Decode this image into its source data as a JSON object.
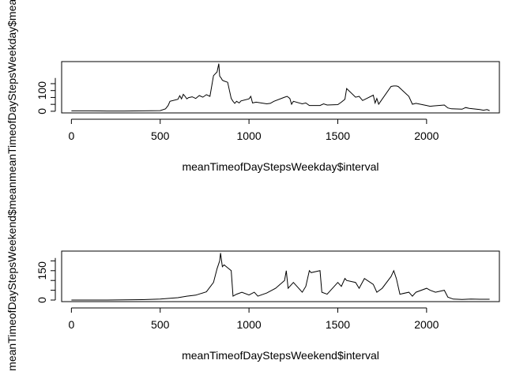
{
  "chart_data": [
    {
      "type": "line",
      "xlabel": "meanTimeofDayStepsWeekday$interval",
      "ylabel": "meanTimeofDayStepsWeekday$mean",
      "xticks": [
        0,
        500,
        1000,
        1500,
        2000
      ],
      "yticks": [
        0,
        100
      ],
      "xlim": [
        -55,
        2410
      ],
      "ylim": [
        -8,
        240
      ],
      "series": [
        {
          "x": [
            0,
            100,
            200,
            300,
            400,
            500,
            530,
            545,
            555,
            600,
            610,
            620,
            630,
            640,
            650,
            660,
            680,
            700,
            720,
            740,
            760,
            780,
            800,
            820,
            830,
            835,
            845,
            850,
            860,
            880,
            900,
            910,
            920,
            930,
            945,
            955,
            1000,
            1010,
            1020,
            1040,
            1100,
            1120,
            1140,
            1200,
            1215,
            1230,
            1240,
            1250,
            1300,
            1320,
            1340,
            1400,
            1420,
            1440,
            1500,
            1520,
            1540,
            1550,
            1600,
            1620,
            1640,
            1700,
            1710,
            1720,
            1730,
            1740,
            1800,
            1815,
            1830,
            1840,
            1900,
            1920,
            1940,
            2000,
            2020,
            2040,
            2100,
            2120,
            2140,
            2200,
            2220,
            2240,
            2300,
            2320,
            2340,
            2355
          ],
          "y": [
            2,
            2,
            1,
            1,
            2,
            3,
            12,
            28,
            48,
            58,
            75,
            60,
            82,
            72,
            60,
            66,
            70,
            62,
            76,
            68,
            80,
            72,
            172,
            190,
            230,
            170,
            158,
            150,
            146,
            140,
            62,
            48,
            38,
            48,
            40,
            50,
            60,
            72,
            40,
            44,
            36,
            38,
            48,
            68,
            72,
            62,
            34,
            48,
            36,
            40,
            28,
            28,
            36,
            30,
            32,
            44,
            58,
            110,
            68,
            72,
            52,
            78,
            40,
            62,
            34,
            46,
            120,
            122,
            122,
            120,
            72,
            34,
            38,
            28,
            24,
            26,
            30,
            16,
            12,
            10,
            18,
            14,
            8,
            5,
            8,
            3
          ]
        }
      ]
    },
    {
      "type": "line",
      "xlabel": "meanTimeofDayStepsWeekend$interval",
      "ylabel": "meanTimeofDayStepsWeekend$mean",
      "xticks": [
        0,
        500,
        1000,
        1500,
        2000
      ],
      "yticks": [
        0,
        150
      ],
      "xlim": [
        -55,
        2410
      ],
      "ylim": [
        -8,
        250
      ],
      "series": [
        {
          "x": [
            0,
            100,
            200,
            300,
            400,
            500,
            600,
            650,
            700,
            760,
            800,
            820,
            835,
            840,
            850,
            860,
            880,
            900,
            910,
            930,
            960,
            1000,
            1030,
            1050,
            1100,
            1150,
            1200,
            1210,
            1220,
            1250,
            1300,
            1320,
            1340,
            1350,
            1400,
            1410,
            1440,
            1500,
            1520,
            1540,
            1550,
            1600,
            1620,
            1650,
            1700,
            1720,
            1750,
            1800,
            1815,
            1830,
            1850,
            1900,
            1920,
            1940,
            2000,
            2020,
            2050,
            2100,
            2120,
            2150,
            2200,
            2250,
            2300,
            2355
          ],
          "y": [
            0,
            0,
            0,
            1,
            2,
            5,
            12,
            20,
            25,
            42,
            90,
            160,
            200,
            240,
            170,
            180,
            165,
            150,
            20,
            30,
            40,
            26,
            40,
            20,
            36,
            60,
            100,
            150,
            60,
            90,
            40,
            70,
            150,
            140,
            150,
            40,
            30,
            90,
            70,
            110,
            100,
            90,
            60,
            110,
            80,
            40,
            60,
            120,
            150,
            110,
            30,
            40,
            20,
            40,
            60,
            50,
            40,
            50,
            15,
            5,
            3,
            5,
            4,
            4
          ]
        }
      ]
    }
  ]
}
